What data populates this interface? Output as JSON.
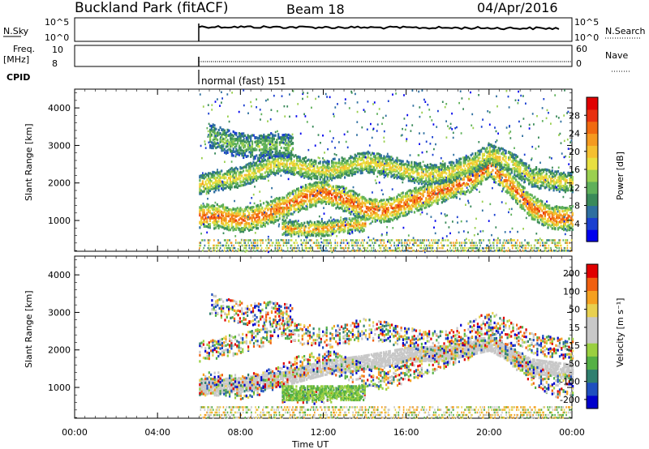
{
  "header": {
    "title": "Buckland Park (fitACF)",
    "beam": "Beam 18",
    "date": "04/Apr/2016"
  },
  "status_strip": {
    "nsky_label": "N.Sky",
    "nsky_hi": "10^5",
    "nsky_lo": "10^0",
    "nsearch_label": "N.Search",
    "nsearch_hi": "10^5",
    "nsearch_lo": "10^0",
    "freq_label": "Freq.",
    "freq_unit": "[MHz]",
    "freq_hi": "10",
    "freq_lo": "8",
    "nave_label": "Nave",
    "nave_hi": "60",
    "nave_lo": "0",
    "cpid_label": "CPID",
    "cpid_value": "normal (fast) 151"
  },
  "chart_data": [
    {
      "type": "heatmap",
      "title": "",
      "xlabel": "Time UT",
      "ylabel": "Slant Range [km]",
      "x_ticks": [
        "00:00",
        "04:00",
        "08:00",
        "12:00",
        "16:00",
        "20:00",
        "00:00"
      ],
      "x_range_hours": [
        0,
        24
      ],
      "y_ticks": [
        1000,
        2000,
        3000,
        4000
      ],
      "ylim": [
        180,
        4500
      ],
      "data_start_hour": 6.0,
      "colorbar_label": "Power [dB]",
      "colorbar_ticks": [
        4,
        8,
        12,
        16,
        20,
        24,
        28
      ],
      "colorbar_range": [
        0,
        32
      ],
      "colors": [
        "#0000ee",
        "#1a3fd0",
        "#2e6fa0",
        "#3a8a5a",
        "#5fb05a",
        "#9bd050",
        "#e8e040",
        "#f5c030",
        "#f59a20",
        "#f06a10",
        "#e83010",
        "#e00000"
      ],
      "echo_bands": [
        {
          "label": "main near-range band",
          "points": [
            [
              6,
              1150
            ],
            [
              7,
              1150
            ],
            [
              8,
              1050
            ],
            [
              9,
              1180
            ],
            [
              10,
              1380
            ],
            [
              11,
              1650
            ],
            [
              12,
              1800
            ],
            [
              13,
              1600
            ],
            [
              14,
              1350
            ],
            [
              15,
              1300
            ],
            [
              16,
              1500
            ],
            [
              17,
              1700
            ],
            [
              18,
              1900
            ],
            [
              19,
              2100
            ],
            [
              20,
              2500
            ],
            [
              21,
              2000
            ],
            [
              22,
              1400
            ],
            [
              23,
              1100
            ],
            [
              24,
              1100
            ]
          ],
          "width_km": 300,
          "peak_db": 28
        },
        {
          "label": "upper band",
          "points": [
            [
              6,
              2000
            ],
            [
              7,
              2100
            ],
            [
              8,
              2200
            ],
            [
              9,
              2400
            ],
            [
              10,
              2600
            ],
            [
              11,
              2450
            ],
            [
              12,
              2350
            ],
            [
              13,
              2450
            ],
            [
              14,
              2600
            ],
            [
              15,
              2500
            ],
            [
              16,
              2350
            ],
            [
              17,
              2250
            ],
            [
              18,
              2300
            ],
            [
              19,
              2500
            ],
            [
              20,
              2800
            ],
            [
              21,
              2600
            ],
            [
              22,
              2200
            ],
            [
              23,
              2100
            ],
            [
              24,
              2050
            ]
          ],
          "width_km": 250,
          "peak_db": 20
        },
        {
          "label": "sporadic far range",
          "points": [
            [
              6.5,
              3300
            ],
            [
              7.5,
              3100
            ],
            [
              8.5,
              3000
            ],
            [
              9.5,
              3050
            ],
            [
              10.5,
              3000
            ]
          ],
          "width_km": 300,
          "peak_db": 14
        },
        {
          "label": "afternoon low band",
          "points": [
            [
              10,
              850
            ],
            [
              11,
              800
            ],
            [
              12,
              820
            ],
            [
              13,
              900
            ],
            [
              14,
              950
            ]
          ],
          "width_km": 180,
          "peak_db": 24
        }
      ]
    },
    {
      "type": "heatmap",
      "title": "",
      "xlabel": "Time UT",
      "ylabel": "Slant Range [km]",
      "x_ticks": [
        "00:00",
        "04:00",
        "08:00",
        "12:00",
        "16:00",
        "20:00",
        "00:00"
      ],
      "x_range_hours": [
        0,
        24
      ],
      "y_ticks": [
        1000,
        2000,
        3000,
        4000
      ],
      "ylim": [
        180,
        4500
      ],
      "data_start_hour": 6.0,
      "colorbar_label": "Velocity [m s⁻¹]",
      "colorbar_ticks": [
        "200",
        "100",
        "50",
        "15",
        "-15",
        "-50",
        "-100",
        "-200"
      ],
      "colors": [
        "#0000cc",
        "#1f4fbf",
        "#2f7f6f",
        "#55b045",
        "#9ad040",
        "#c8c8c8",
        "#c8c8c8",
        "#e8d050",
        "#f5a020",
        "#f06010",
        "#e00000"
      ],
      "ground_scatter": [
        {
          "points": [
            [
              6,
              1050
            ],
            [
              8,
              1100
            ],
            [
              10,
              1250
            ],
            [
              12,
              1550
            ],
            [
              14,
              1700
            ],
            [
              16,
              1900
            ],
            [
              18,
              1950
            ],
            [
              20,
              2200
            ],
            [
              22,
              1600
            ],
            [
              24,
              1450
            ]
          ],
          "width_km": 180
        }
      ]
    }
  ]
}
